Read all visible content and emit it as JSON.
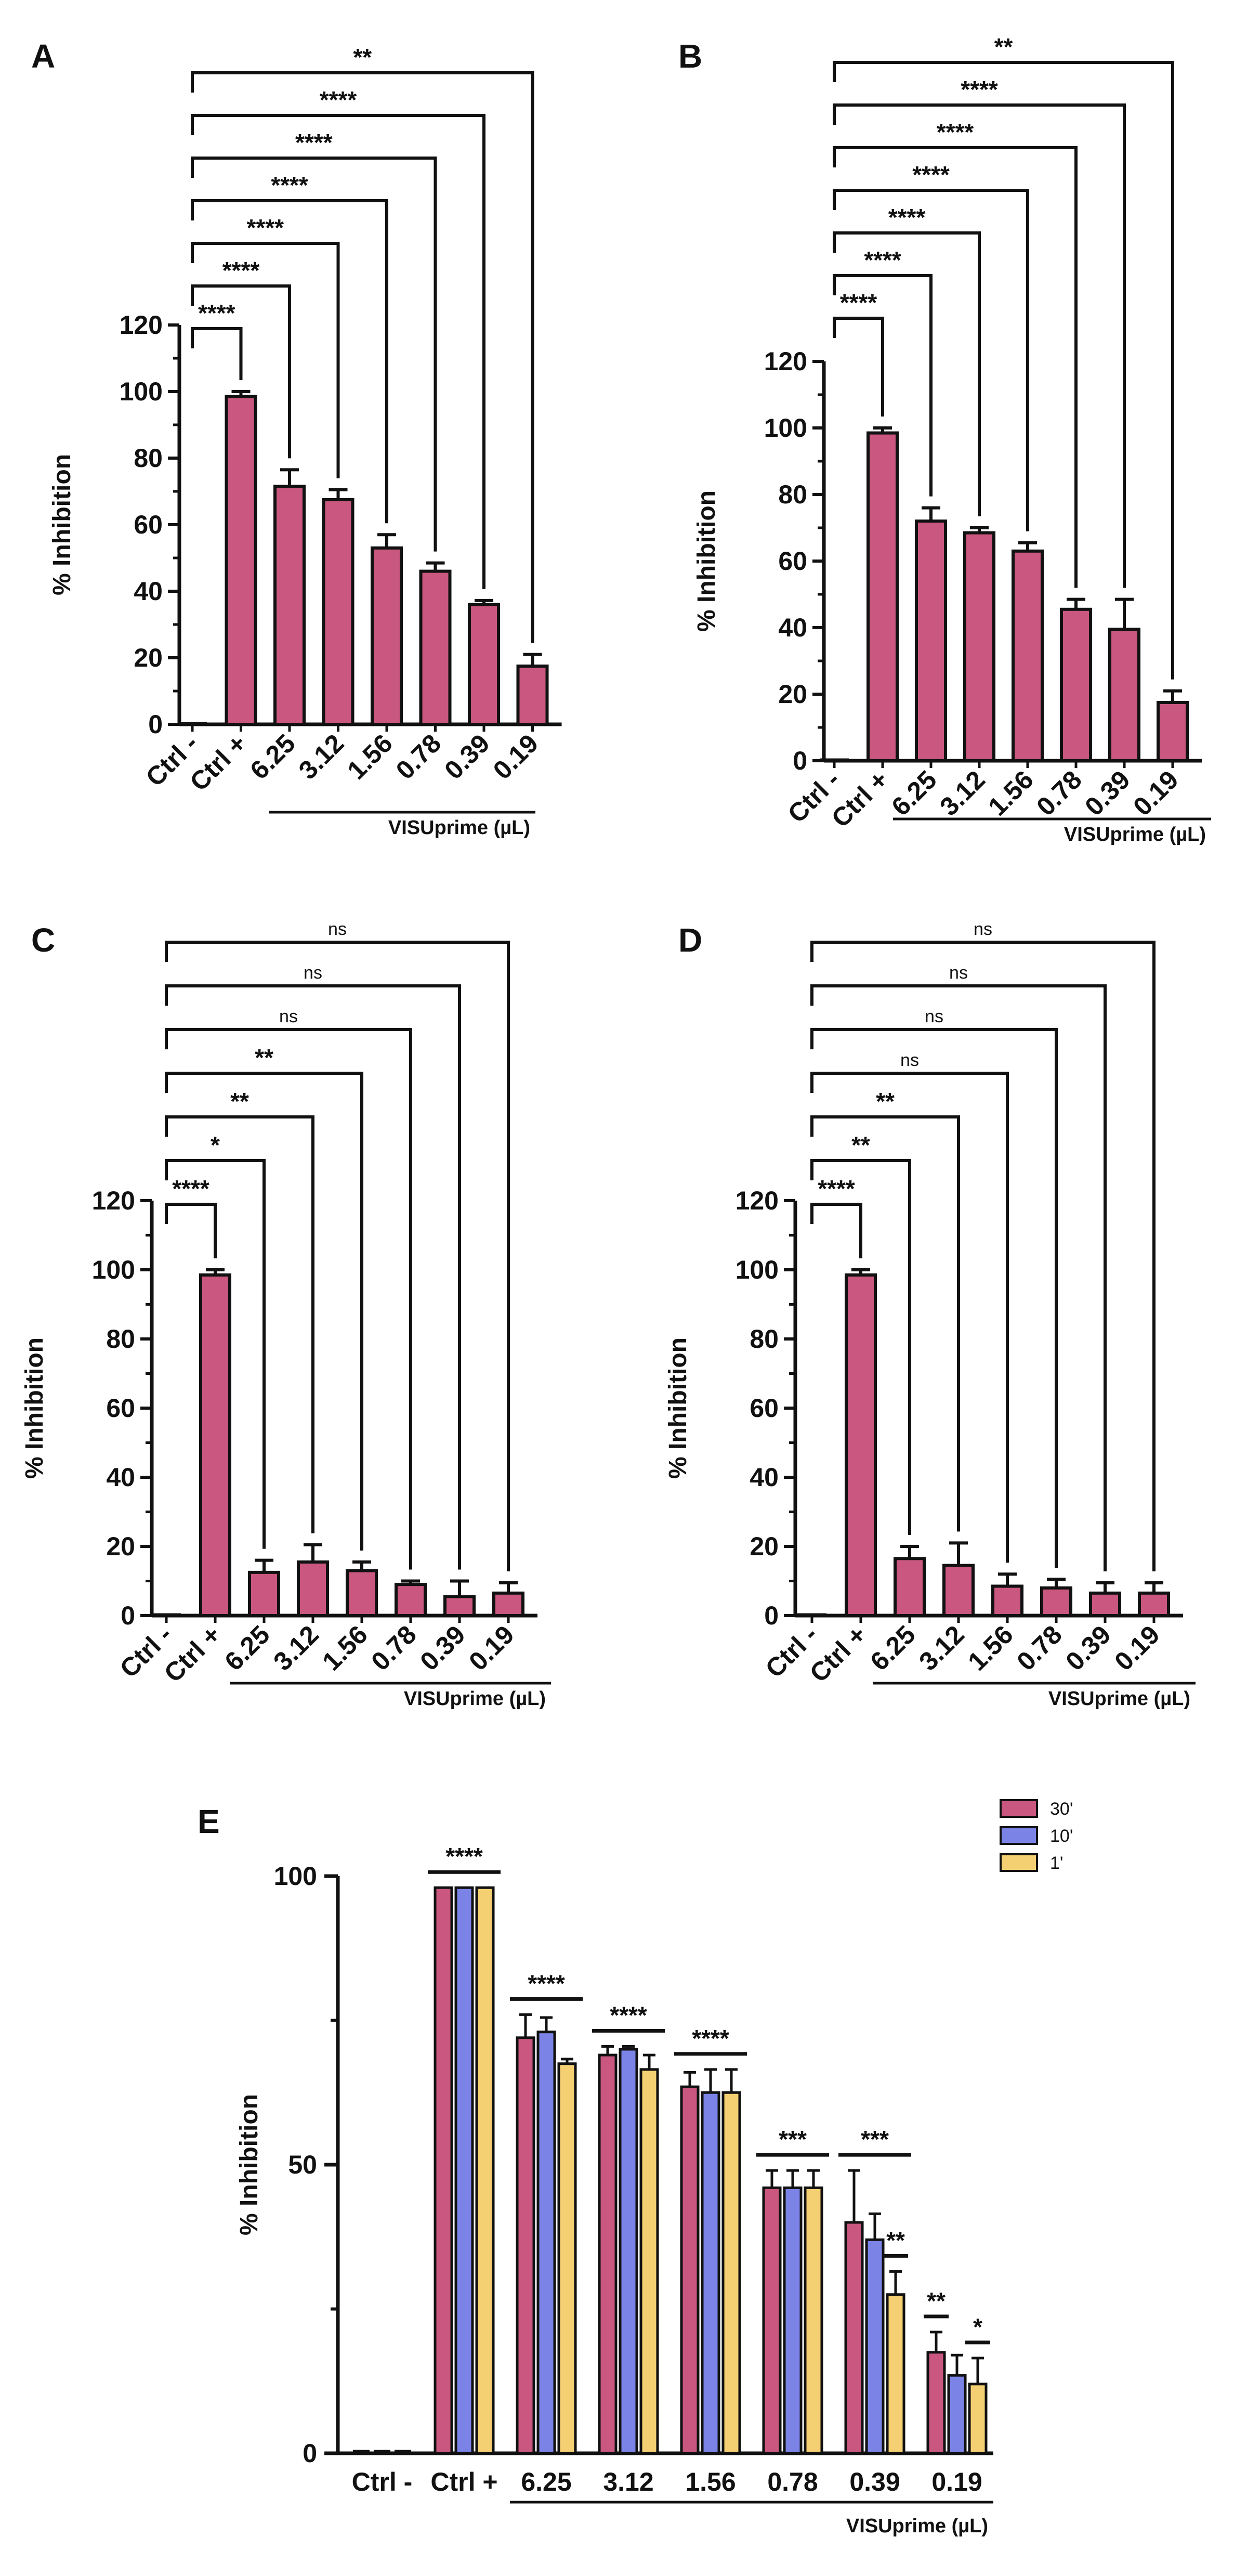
{
  "panels": [
    {
      "label": "A",
      "ylabel": "% Inhibition",
      "ylim": [
        0,
        120
      ],
      "ytick_labels": [
        "0",
        "20",
        "40",
        "60",
        "80",
        "100",
        "120"
      ],
      "categories": [
        "Ctrl -",
        "Ctrl +",
        "6.25",
        "3.12",
        "1.56",
        "0.78",
        "0.39",
        "0.19"
      ],
      "values": [
        0,
        98.5,
        71.5,
        67.5,
        53,
        46,
        36,
        17.5
      ],
      "errors": [
        0,
        1.5,
        5,
        3,
        4,
        2.5,
        1.2,
        3.5
      ],
      "group_label": "VISUprime (µL)",
      "comparisons": [
        {
          "target": 1,
          "text": "****"
        },
        {
          "target": 2,
          "text": "****"
        },
        {
          "target": 3,
          "text": "****"
        },
        {
          "target": 4,
          "text": "****"
        },
        {
          "target": 5,
          "text": "****"
        },
        {
          "target": 6,
          "text": "****"
        },
        {
          "target": 7,
          "text": "**"
        }
      ]
    },
    {
      "label": "B",
      "ylabel": "% Inhibition",
      "ylim": [
        0,
        120
      ],
      "ytick_labels": [
        "0",
        "20",
        "40",
        "60",
        "80",
        "100",
        "120"
      ],
      "categories": [
        "Ctrl -",
        "Ctrl +",
        "6.25",
        "3.12",
        "1.56",
        "0.78",
        "0.39",
        "0.19"
      ],
      "values": [
        0,
        98.5,
        72,
        68.5,
        63,
        45.5,
        39.5,
        17.5
      ],
      "errors": [
        0,
        1.5,
        4,
        1.5,
        2.5,
        3,
        9,
        3.5
      ],
      "group_label": "VISUprime (µL)",
      "comparisons": [
        {
          "target": 1,
          "text": "****"
        },
        {
          "target": 2,
          "text": "****"
        },
        {
          "target": 3,
          "text": "****"
        },
        {
          "target": 4,
          "text": "****"
        },
        {
          "target": 5,
          "text": "****"
        },
        {
          "target": 6,
          "text": "****"
        },
        {
          "target": 7,
          "text": "**"
        }
      ]
    },
    {
      "label": "C",
      "ylabel": "% Inhibition",
      "ylim": [
        0,
        120
      ],
      "ytick_labels": [
        "0",
        "20",
        "40",
        "60",
        "80",
        "100",
        "120"
      ],
      "categories": [
        "Ctrl -",
        "Ctrl +",
        "6.25",
        "3.12",
        "1.56",
        "0.78",
        "0.39",
        "0.19"
      ],
      "values": [
        0,
        98.5,
        12.5,
        15.5,
        13,
        9,
        5.5,
        6.5
      ],
      "errors": [
        0,
        1.5,
        3.5,
        5,
        2.5,
        1,
        4.5,
        3
      ],
      "group_label": "VISUprime (µL)",
      "comparisons": [
        {
          "target": 1,
          "text": "****"
        },
        {
          "target": 2,
          "text": "*"
        },
        {
          "target": 3,
          "text": "**"
        },
        {
          "target": 4,
          "text": "**"
        },
        {
          "target": 5,
          "text": "ns"
        },
        {
          "target": 6,
          "text": "ns"
        },
        {
          "target": 7,
          "text": "ns"
        }
      ]
    },
    {
      "label": "D",
      "ylabel": "% Inhibition",
      "ylim": [
        0,
        120
      ],
      "ytick_labels": [
        "0",
        "20",
        "40",
        "60",
        "80",
        "100",
        "120"
      ],
      "categories": [
        "Ctrl -",
        "Ctrl +",
        "6.25",
        "3.12",
        "1.56",
        "0.78",
        "0.39",
        "0.19"
      ],
      "values": [
        0,
        98.5,
        16.5,
        14.5,
        8.5,
        8,
        6.5,
        6.5
      ],
      "errors": [
        0,
        1.5,
        3.5,
        6.5,
        3.5,
        2.5,
        3,
        3
      ],
      "group_label": "VISUprime (µL)",
      "comparisons": [
        {
          "target": 1,
          "text": "****"
        },
        {
          "target": 2,
          "text": "**"
        },
        {
          "target": 3,
          "text": "**"
        },
        {
          "target": 4,
          "text": "ns"
        },
        {
          "target": 5,
          "text": "ns"
        },
        {
          "target": 6,
          "text": "ns"
        },
        {
          "target": 7,
          "text": "ns"
        }
      ]
    }
  ],
  "panel_e": {
    "label": "E",
    "ylabel": "% Inhibition",
    "ylim": [
      0,
      100
    ],
    "ytick_labels": [
      "0",
      "50",
      "100"
    ],
    "categories": [
      "Ctrl -",
      "Ctrl +",
      "6.25",
      "3.12",
      "1.56",
      "0.78",
      "0.39",
      "0.19"
    ],
    "group_label": "VISUprime (µL)",
    "legend": [
      "30'",
      "10'",
      "1'"
    ],
    "series": [
      {
        "name": "30'",
        "color": "#c9577f",
        "values": [
          0.5,
          98,
          72,
          69,
          63.5,
          46,
          40,
          17.5
        ],
        "errors": [
          0,
          0,
          4,
          1.5,
          2.5,
          3,
          9,
          3.5
        ]
      },
      {
        "name": "10'",
        "color": "#7b84e6",
        "values": [
          0.5,
          98,
          73,
          70,
          62.5,
          46,
          37,
          13.5
        ],
        "errors": [
          0,
          0,
          2.5,
          0.5,
          4,
          3,
          4.5,
          3.5
        ]
      },
      {
        "name": "1'",
        "color": "#f5d072",
        "values": [
          0.5,
          98,
          67.5,
          66.5,
          62.5,
          46,
          27.5,
          12
        ],
        "errors": [
          0,
          0,
          0.8,
          2.5,
          4,
          3,
          4,
          4.5
        ]
      }
    ],
    "significance": [
      {
        "group": 1,
        "text": "****"
      },
      {
        "group": 2,
        "text": "****"
      },
      {
        "group": 3,
        "text": "****"
      },
      {
        "group": 4,
        "text": "****"
      },
      {
        "group": 5,
        "text": "***"
      },
      {
        "group": 6,
        "text": "***"
      },
      {
        "group": 6,
        "text": "**",
        "bar": 2
      },
      {
        "group": 7,
        "text": "**",
        "bar": 0
      },
      {
        "group": 7,
        "text": "*",
        "bar": 2
      }
    ]
  }
}
